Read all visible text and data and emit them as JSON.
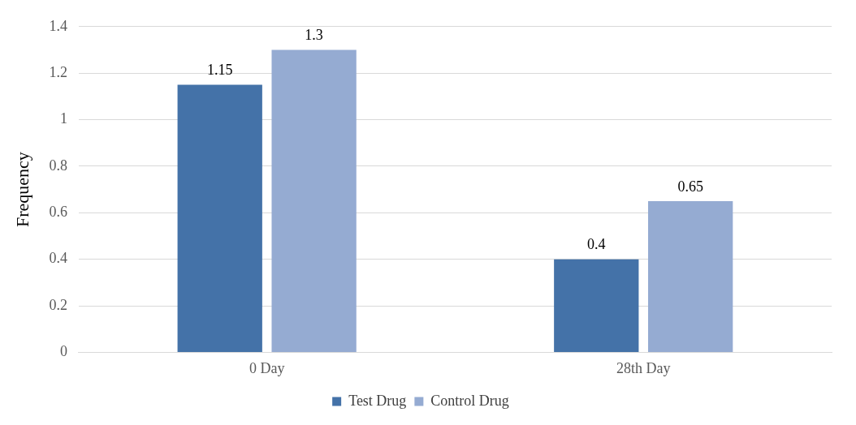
{
  "chart_data": {
    "type": "bar",
    "ylabel": "Frequency",
    "categories": [
      "0 Day",
      "28th Day"
    ],
    "series": [
      {
        "name": "Test Drug",
        "color": "#4472a8",
        "values": [
          1.15,
          0.4
        ]
      },
      {
        "name": "Control Drug",
        "color": "#95abd2",
        "values": [
          1.3,
          0.65
        ]
      }
    ],
    "ylim": [
      0,
      1.4
    ],
    "yticks": [
      0,
      0.2,
      0.4,
      0.6,
      0.8,
      1,
      1.2,
      1.4
    ],
    "grid": "y",
    "legend": "bottom",
    "data_labels": true
  }
}
